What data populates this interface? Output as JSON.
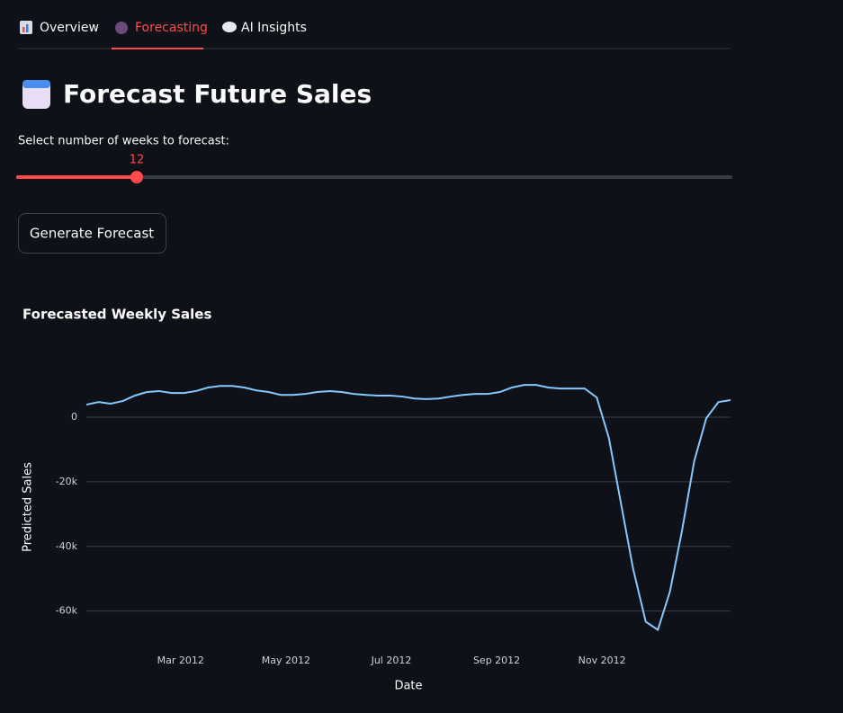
{
  "tabs": [
    "Overview",
    "Forecasting",
    "AI Insights"
  ],
  "header": {
    "title": "Forecast Future Sales"
  },
  "slider": {
    "label": "Select number of weeks to forecast:",
    "value": 12
  },
  "button": {
    "label": "Generate Forecast"
  },
  "chart_data": {
    "type": "line",
    "title": "Forecasted Weekly Sales",
    "x_label": "Date",
    "y_label": "Predicted Sales",
    "x": [
      0.21,
      0.44,
      0.67,
      0.9,
      1.13,
      1.36,
      1.59,
      1.83,
      2.06,
      2.29,
      2.52,
      2.75,
      2.98,
      3.21,
      3.44,
      3.67,
      3.9,
      4.13,
      4.36,
      4.59,
      4.83,
      5.06,
      5.29,
      5.52,
      5.75,
      5.98,
      6.21,
      6.44,
      6.67,
      6.9,
      7.13,
      7.36,
      7.59,
      7.83,
      8.06,
      8.29,
      8.52,
      8.75,
      8.98,
      9.21,
      9.44,
      9.67,
      9.9,
      10.13,
      10.36,
      10.59,
      10.83,
      11.06,
      11.29,
      11.52,
      11.75,
      11.98,
      12.21,
      12.44
    ],
    "series": [
      {
        "name": "Predicted Sales",
        "color": "#83c9ff",
        "values": [
          3900,
          4700,
          4200,
          5000,
          6700,
          7800,
          8100,
          7500,
          7500,
          8100,
          9200,
          9700,
          9700,
          9200,
          8300,
          7800,
          6900,
          6900,
          7200,
          7800,
          8100,
          7800,
          7200,
          6900,
          6700,
          6700,
          6400,
          5800,
          5600,
          5800,
          6400,
          6900,
          7200,
          7200,
          7800,
          9200,
          10000,
          10000,
          9200,
          8900,
          8900,
          8900,
          6100,
          -6400,
          -26700,
          -46900,
          -63300,
          -65800,
          -53900,
          -35000,
          -13600,
          -300,
          4700,
          5300
        ]
      }
    ],
    "xlim": [
      0.21,
      12.44
    ],
    "xticks": [
      {
        "value": 2,
        "label": "Mar 2012"
      },
      {
        "value": 4,
        "label": "May 2012"
      },
      {
        "value": 6,
        "label": "Jul 2012"
      },
      {
        "value": 8,
        "label": "Sep 2012"
      },
      {
        "value": 10,
        "label": "Nov 2012"
      }
    ],
    "ylim": [
      -69000,
      22000
    ],
    "yticks": [
      {
        "value": -60000,
        "label": "-60k"
      },
      {
        "value": -40000,
        "label": "-40k"
      },
      {
        "value": -20000,
        "label": "-20k"
      },
      0
    ],
    "grid": true
  }
}
